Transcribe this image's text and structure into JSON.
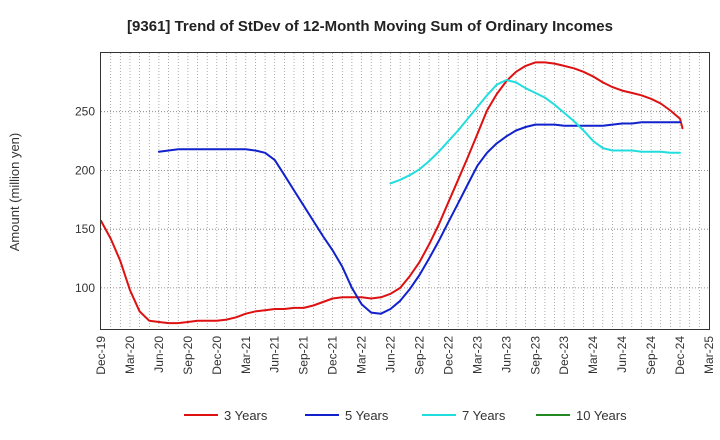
{
  "chart_data": {
    "type": "line",
    "title": "[9361]  Trend of StDev of 12-Month Moving Sum of Ordinary Incomes",
    "xlabel": "",
    "ylabel": "Amount (million yen)",
    "x_ticks": [
      "Dec-19",
      "Mar-20",
      "Jun-20",
      "Sep-20",
      "Dec-20",
      "Mar-21",
      "Jun-21",
      "Sep-21",
      "Dec-21",
      "Mar-22",
      "Jun-22",
      "Sep-22",
      "Dec-22",
      "Mar-23",
      "Jun-23",
      "Sep-23",
      "Dec-23",
      "Mar-24",
      "Jun-24",
      "Sep-24",
      "Dec-24",
      "Mar-25"
    ],
    "y_ticks": [
      100,
      150,
      200,
      250
    ],
    "ylim": [
      65,
      300
    ],
    "grid": true,
    "legend_position": "bottom",
    "series": [
      {
        "name": "3 Years",
        "color": "#dd1111",
        "x": [
          "2019-12",
          "2020-01",
          "2020-02",
          "2020-03",
          "2020-04",
          "2020-05",
          "2020-06",
          "2020-07",
          "2020-08",
          "2020-09",
          "2020-10",
          "2020-11",
          "2020-12",
          "2021-01",
          "2021-02",
          "2021-03",
          "2021-04",
          "2021-05",
          "2021-06",
          "2021-07",
          "2021-08",
          "2021-09",
          "2021-10",
          "2021-11",
          "2021-12",
          "2022-01",
          "2022-02",
          "2022-03",
          "2022-04",
          "2022-05",
          "2022-06",
          "2022-07",
          "2022-08",
          "2022-09",
          "2022-10",
          "2022-11",
          "2022-12",
          "2023-01",
          "2023-02",
          "2023-03",
          "2023-04",
          "2023-05",
          "2023-06",
          "2023-07",
          "2023-08",
          "2023-09",
          "2023-10",
          "2023-11",
          "2023-12",
          "2024-01",
          "2024-02",
          "2024-03",
          "2024-04",
          "2024-05",
          "2024-06",
          "2024-07",
          "2024-08",
          "2024-09",
          "2024-10",
          "2024-11",
          "2024-12"
        ],
        "values": [
          157,
          142,
          123,
          98,
          80,
          72,
          71,
          70,
          70,
          71,
          72,
          72,
          72,
          73,
          75,
          78,
          80,
          81,
          82,
          82,
          83,
          83,
          85,
          88,
          91,
          92,
          92,
          92,
          91,
          92,
          95,
          100,
          110,
          122,
          137,
          154,
          173,
          192,
          211,
          231,
          251,
          265,
          276,
          284,
          289,
          292,
          292,
          291,
          289,
          287,
          284,
          280,
          275,
          271,
          268,
          266,
          264,
          261,
          257,
          251,
          244
        ],
        "end": 236
      },
      {
        "name": "5 Years",
        "color": "#1122cc",
        "x": [
          "2020-06",
          "2020-07",
          "2020-08",
          "2020-09",
          "2020-10",
          "2020-11",
          "2020-12",
          "2021-01",
          "2021-02",
          "2021-03",
          "2021-04",
          "2021-05",
          "2021-06",
          "2021-07",
          "2021-08",
          "2021-09",
          "2021-10",
          "2021-11",
          "2021-12",
          "2022-01",
          "2022-02",
          "2022-03",
          "2022-04",
          "2022-05",
          "2022-06",
          "2022-07",
          "2022-08",
          "2022-09",
          "2022-10",
          "2022-11",
          "2022-12",
          "2023-01",
          "2023-02",
          "2023-03",
          "2023-04",
          "2023-05",
          "2023-06",
          "2023-07",
          "2023-08",
          "2023-09",
          "2023-10",
          "2023-11",
          "2023-12",
          "2024-01",
          "2024-02",
          "2024-03",
          "2024-04",
          "2024-05",
          "2024-06",
          "2024-07",
          "2024-08",
          "2024-09",
          "2024-10",
          "2024-11",
          "2024-12"
        ],
        "values": [
          216,
          217,
          218,
          218,
          218,
          218,
          218,
          218,
          218,
          218,
          217,
          215,
          209,
          196,
          183,
          170,
          157,
          144,
          132,
          118,
          100,
          86,
          79,
          78,
          82,
          89,
          99,
          111,
          125,
          140,
          156,
          172,
          188,
          204,
          215,
          223,
          229,
          234,
          237,
          239,
          239,
          239,
          238,
          238,
          238,
          238,
          238,
          239,
          240,
          240,
          241,
          241,
          241,
          241,
          241
        ]
      },
      {
        "name": "7 Years",
        "color": "#22dddd",
        "x": [
          "2022-06",
          "2022-07",
          "2022-08",
          "2022-09",
          "2022-10",
          "2022-11",
          "2022-12",
          "2023-01",
          "2023-02",
          "2023-03",
          "2023-04",
          "2023-05",
          "2023-06",
          "2023-07",
          "2023-08",
          "2023-09",
          "2023-10",
          "2023-11",
          "2023-12",
          "2024-01",
          "2024-02",
          "2024-03",
          "2024-04",
          "2024-05",
          "2024-06",
          "2024-07",
          "2024-08",
          "2024-09",
          "2024-10",
          "2024-11",
          "2024-12"
        ],
        "values": [
          189,
          192,
          196,
          201,
          208,
          216,
          225,
          234,
          244,
          254,
          264,
          273,
          277,
          275,
          270,
          266,
          262,
          256,
          249,
          242,
          234,
          225,
          219,
          217,
          217,
          217,
          216,
          216,
          216,
          215,
          215
        ]
      },
      {
        "name": "10 Years",
        "color": "#228822",
        "x": [],
        "values": []
      }
    ]
  }
}
